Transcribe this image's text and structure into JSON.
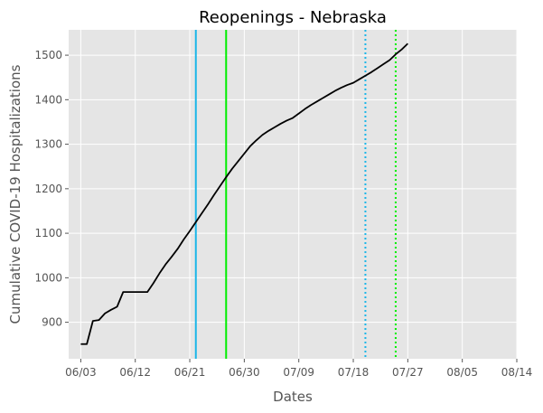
{
  "chart_data": {
    "type": "line",
    "title": "Reopenings - Nebraska",
    "xlabel": "Dates",
    "ylabel": "Cumulative COVID-19 Hospitalizations",
    "x_tick_labels": [
      "06/03",
      "06/12",
      "06/21",
      "06/30",
      "07/09",
      "07/18",
      "07/27",
      "08/05",
      "08/14"
    ],
    "x_ticks": [
      "2020-06-03",
      "2020-06-12",
      "2020-06-21",
      "2020-06-30",
      "2020-07-09",
      "2020-07-18",
      "2020-07-27",
      "2020-08-05",
      "2020-08-14"
    ],
    "xlim": [
      "2020-06-01",
      "2020-08-14"
    ],
    "y_ticks": [
      900,
      1000,
      1100,
      1200,
      1300,
      1400,
      1500
    ],
    "ylim": [
      818,
      1557
    ],
    "grid": true,
    "background": "#e5e5e5",
    "series": [
      {
        "color": "#000000",
        "points": [
          [
            "2020-06-03",
            851
          ],
          [
            "2020-06-04",
            851
          ],
          [
            "2020-06-05",
            903
          ],
          [
            "2020-06-06",
            905
          ],
          [
            "2020-06-07",
            920
          ],
          [
            "2020-06-08",
            928
          ],
          [
            "2020-06-09",
            935
          ],
          [
            "2020-06-10",
            968
          ],
          [
            "2020-06-11",
            968
          ],
          [
            "2020-06-12",
            968
          ],
          [
            "2020-06-13",
            968
          ],
          [
            "2020-06-14",
            968
          ],
          [
            "2020-06-15",
            988
          ],
          [
            "2020-06-16",
            1010
          ],
          [
            "2020-06-17",
            1030
          ],
          [
            "2020-06-18",
            1047
          ],
          [
            "2020-06-19",
            1065
          ],
          [
            "2020-06-20",
            1086
          ],
          [
            "2020-06-21",
            1105
          ],
          [
            "2020-06-22",
            1125
          ],
          [
            "2020-06-23",
            1145
          ],
          [
            "2020-06-24",
            1165
          ],
          [
            "2020-06-25",
            1186
          ],
          [
            "2020-06-26",
            1206
          ],
          [
            "2020-06-27",
            1226
          ],
          [
            "2020-06-28",
            1245
          ],
          [
            "2020-06-29",
            1262
          ],
          [
            "2020-06-30",
            1279
          ],
          [
            "2020-07-01",
            1296
          ],
          [
            "2020-07-02",
            1309
          ],
          [
            "2020-07-03",
            1321
          ],
          [
            "2020-07-04",
            1330
          ],
          [
            "2020-07-05",
            1338
          ],
          [
            "2020-07-06",
            1346
          ],
          [
            "2020-07-07",
            1353
          ],
          [
            "2020-07-08",
            1359
          ],
          [
            "2020-07-09",
            1369
          ],
          [
            "2020-07-10",
            1379
          ],
          [
            "2020-07-11",
            1388
          ],
          [
            "2020-07-12",
            1396
          ],
          [
            "2020-07-13",
            1404
          ],
          [
            "2020-07-14",
            1412
          ],
          [
            "2020-07-15",
            1420
          ],
          [
            "2020-07-16",
            1427
          ],
          [
            "2020-07-17",
            1433
          ],
          [
            "2020-07-18",
            1438
          ],
          [
            "2020-07-19",
            1446
          ],
          [
            "2020-07-20",
            1454
          ],
          [
            "2020-07-21",
            1462
          ],
          [
            "2020-07-22",
            1471
          ],
          [
            "2020-07-23",
            1480
          ],
          [
            "2020-07-24",
            1489
          ],
          [
            "2020-07-25",
            1502
          ],
          [
            "2020-07-26",
            1513
          ],
          [
            "2020-07-27",
            1526
          ]
        ]
      }
    ],
    "vertical_lines": [
      {
        "x": "2020-06-22",
        "color": "#1bb6e8",
        "style": "solid"
      },
      {
        "x": "2020-06-27",
        "color": "#00ee00",
        "style": "solid"
      },
      {
        "x": "2020-07-20",
        "color": "#1bb6e8",
        "style": "dotted"
      },
      {
        "x": "2020-07-25",
        "color": "#00ee00",
        "style": "dotted"
      }
    ]
  }
}
